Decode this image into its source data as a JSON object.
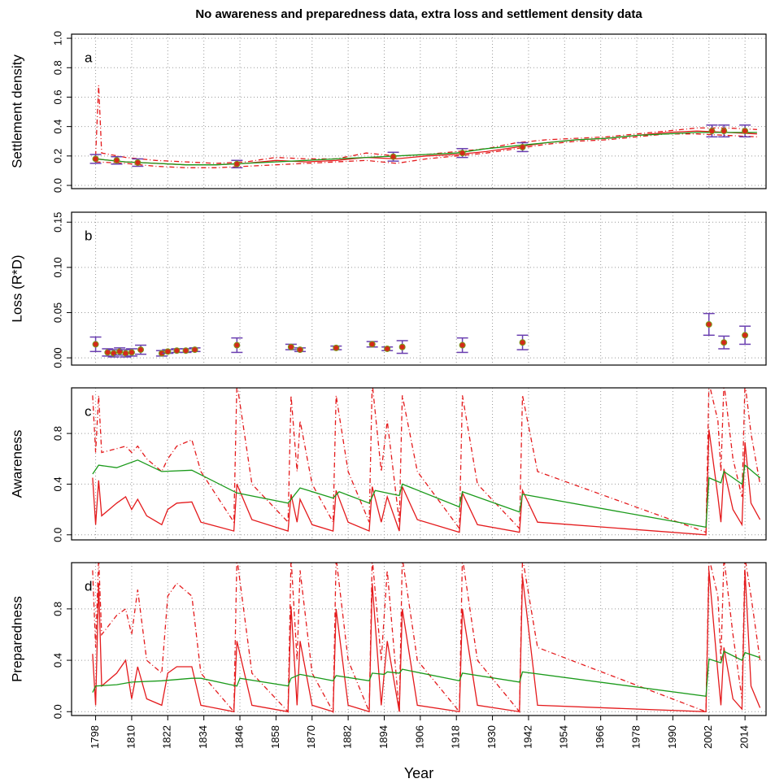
{
  "title": "No awareness and preparedness data, extra loss and settlement density data",
  "x_label": "Year",
  "xlim": [
    1790,
    2021
  ],
  "xticks": [
    1798,
    1810,
    1822,
    1834,
    1846,
    1858,
    1870,
    1882,
    1894,
    1906,
    1918,
    1930,
    1942,
    1954,
    1966,
    1978,
    1990,
    2002,
    2014
  ],
  "chart_data": [
    {
      "type": "line",
      "panel_label": "a",
      "y_label": "Settlement density",
      "grid": true,
      "ylim": [
        -0.022,
        1.028
      ],
      "yticks": [
        {
          "value": 0,
          "label": "0.0"
        },
        0.2,
        0.4,
        0.6,
        0.8,
        {
          "value": 1,
          "label": "1.0"
        }
      ],
      "series": [
        {
          "color": "#e41a1c",
          "dash": true,
          "x": [
            1798,
            1799,
            1800,
            1808,
            1818,
            1828,
            1838,
            1848,
            1858,
            1868,
            1878,
            1888,
            1898,
            1908,
            1918,
            1928,
            1938,
            1948,
            1958,
            1968,
            1978,
            1988,
            1998,
            2008,
            2018
          ],
          "values": [
            0.2,
            0.68,
            0.22,
            0.19,
            0.17,
            0.16,
            0.15,
            0.16,
            0.19,
            0.18,
            0.18,
            0.22,
            0.2,
            0.21,
            0.23,
            0.25,
            0.29,
            0.31,
            0.32,
            0.33,
            0.35,
            0.37,
            0.39,
            0.39,
            0.38
          ]
        },
        {
          "color": "#e41a1c",
          "dash": true,
          "x": [
            1798,
            1808,
            1818,
            1828,
            1838,
            1848,
            1858,
            1868,
            1878,
            1888,
            1898,
            1908,
            1918,
            1928,
            1938,
            1948,
            1958,
            1968,
            1978,
            1988,
            1998,
            2008,
            2018
          ],
          "values": [
            0.16,
            0.15,
            0.13,
            0.12,
            0.12,
            0.13,
            0.14,
            0.15,
            0.16,
            0.17,
            0.15,
            0.18,
            0.2,
            0.22,
            0.25,
            0.28,
            0.3,
            0.31,
            0.33,
            0.35,
            0.35,
            0.34,
            0.33
          ]
        },
        {
          "color": "#e41a1c",
          "dash": false,
          "x": [
            1798,
            1808,
            1818,
            1828,
            1838,
            1848,
            1858,
            1868,
            1878,
            1888,
            1898,
            1908,
            1918,
            1928,
            1938,
            1948,
            1958,
            1968,
            1978,
            1988,
            1998,
            2008,
            2018
          ],
          "values": [
            0.18,
            0.16,
            0.15,
            0.14,
            0.14,
            0.15,
            0.17,
            0.16,
            0.17,
            0.19,
            0.18,
            0.2,
            0.21,
            0.23,
            0.26,
            0.29,
            0.31,
            0.32,
            0.34,
            0.36,
            0.37,
            0.36,
            0.35
          ]
        },
        {
          "color": "#1a9a1a",
          "dash": false,
          "x": [
            1798,
            1808,
            1818,
            1828,
            1838,
            1848,
            1858,
            1868,
            1878,
            1888,
            1898,
            1908,
            1918,
            1928,
            1938,
            1948,
            1958,
            1968,
            1978,
            1988,
            1998,
            2008,
            2018
          ],
          "values": [
            0.18,
            0.16,
            0.15,
            0.14,
            0.14,
            0.15,
            0.16,
            0.17,
            0.18,
            0.19,
            0.2,
            0.21,
            0.22,
            0.25,
            0.27,
            0.29,
            0.31,
            0.32,
            0.34,
            0.35,
            0.36,
            0.36,
            0.36
          ]
        }
      ],
      "points": {
        "color": "#6a3fb0",
        "x": [
          1798,
          1805,
          1812,
          1845,
          1897,
          1920,
          1940,
          2003,
          2007,
          2014
        ],
        "values": [
          0.18,
          0.17,
          0.155,
          0.145,
          0.195,
          0.22,
          0.26,
          0.37,
          0.37,
          0.37
        ],
        "errors": [
          0.03,
          0.025,
          0.025,
          0.025,
          0.03,
          0.03,
          0.03,
          0.04,
          0.04,
          0.04
        ]
      }
    },
    {
      "type": "line",
      "panel_label": "b",
      "y_label": "Loss (R*D)",
      "grid": true,
      "ylim": [
        -0.008,
        0.161
      ],
      "yticks": [
        {
          "value": 0,
          "label": "0.00"
        },
        0.05,
        {
          "value": 0.1,
          "label": "0.10"
        },
        0.15
      ],
      "series": [],
      "points": {
        "color": "#6a3fb0",
        "x": [
          1798,
          1802,
          1804,
          1806,
          1808,
          1810,
          1813,
          1820,
          1822,
          1825,
          1828,
          1831,
          1845,
          1863,
          1866,
          1878,
          1890,
          1895,
          1900,
          1920,
          1940,
          2002,
          2007,
          2014
        ],
        "values": [
          0.015,
          0.006,
          0.005,
          0.007,
          0.005,
          0.006,
          0.009,
          0.005,
          0.007,
          0.008,
          0.008,
          0.009,
          0.014,
          0.012,
          0.009,
          0.011,
          0.015,
          0.01,
          0.012,
          0.014,
          0.017,
          0.037,
          0.017,
          0.025
        ],
        "errors": [
          0.008,
          0.004,
          0.004,
          0.004,
          0.004,
          0.004,
          0.005,
          0.003,
          0.002,
          0.002,
          0.002,
          0.002,
          0.008,
          0.003,
          0.002,
          0.002,
          0.003,
          0.002,
          0.007,
          0.008,
          0.008,
          0.012,
          0.007,
          0.01
        ]
      }
    },
    {
      "type": "line",
      "panel_label": "c",
      "y_label": "Awareness",
      "grid": true,
      "ylim": [
        -0.04,
        1.16
      ],
      "yticks": [
        {
          "value": 0,
          "label": "0.0"
        },
        0.4,
        0.8
      ],
      "series": [
        {
          "color": "#e41a1c",
          "dash": true,
          "x": [
            1797,
            1798,
            1799,
            1800,
            1805,
            1808,
            1810,
            1812,
            1815,
            1820,
            1822,
            1825,
            1830,
            1833,
            1844,
            1845,
            1850,
            1862,
            1863,
            1865,
            1866,
            1870,
            1877,
            1878,
            1882,
            1889,
            1890,
            1893,
            1895,
            1899,
            1900,
            1905,
            1919,
            1920,
            1925,
            1939,
            1940,
            1945,
            2001,
            2002,
            2005,
            2006,
            2007,
            2010,
            2013,
            2014,
            2016,
            2019
          ],
          "values": [
            1.1,
            0.65,
            1.1,
            0.65,
            0.68,
            0.7,
            0.65,
            0.7,
            0.6,
            0.5,
            0.6,
            0.7,
            0.75,
            0.5,
            0.1,
            1.2,
            0.4,
            0.1,
            1.1,
            0.5,
            0.9,
            0.4,
            0.1,
            1.1,
            0.5,
            0.1,
            1.2,
            0.5,
            0.9,
            0.1,
            1.1,
            0.5,
            0.05,
            1.1,
            0.4,
            0.05,
            1.1,
            0.5,
            0.02,
            1.2,
            0.9,
            0.5,
            1.2,
            0.6,
            0.3,
            1.2,
            0.8,
            0.4
          ]
        },
        {
          "color": "#e41a1c",
          "dash": false,
          "x": [
            1797,
            1798,
            1799,
            1800,
            1805,
            1808,
            1810,
            1812,
            1815,
            1820,
            1822,
            1825,
            1830,
            1833,
            1844,
            1845,
            1850,
            1862,
            1863,
            1865,
            1866,
            1870,
            1877,
            1878,
            1882,
            1889,
            1890,
            1893,
            1895,
            1899,
            1900,
            1905,
            1919,
            1920,
            1925,
            1939,
            1940,
            1945,
            2001,
            2002,
            2005,
            2006,
            2007,
            2010,
            2013,
            2014,
            2016,
            2019
          ],
          "values": [
            0.45,
            0.08,
            0.43,
            0.15,
            0.25,
            0.3,
            0.2,
            0.28,
            0.15,
            0.08,
            0.2,
            0.25,
            0.26,
            0.1,
            0.03,
            0.4,
            0.12,
            0.03,
            0.32,
            0.1,
            0.28,
            0.08,
            0.03,
            0.35,
            0.1,
            0.03,
            0.38,
            0.1,
            0.3,
            0.03,
            0.38,
            0.12,
            0.02,
            0.33,
            0.08,
            0.02,
            0.35,
            0.1,
            0.0,
            0.83,
            0.3,
            0.1,
            0.52,
            0.2,
            0.08,
            0.73,
            0.25,
            0.12
          ]
        },
        {
          "color": "#1a9a1a",
          "dash": false,
          "x": [
            1797,
            1799,
            1805,
            1812,
            1820,
            1830,
            1845,
            1862,
            1866,
            1877,
            1879,
            1889,
            1891,
            1899,
            1900,
            1919,
            1920,
            1939,
            1940,
            2001,
            2002,
            2006,
            2007,
            2013,
            2014,
            2019
          ],
          "values": [
            0.48,
            0.55,
            0.53,
            0.59,
            0.5,
            0.51,
            0.33,
            0.25,
            0.37,
            0.29,
            0.34,
            0.25,
            0.35,
            0.31,
            0.4,
            0.22,
            0.34,
            0.18,
            0.32,
            0.06,
            0.45,
            0.41,
            0.5,
            0.4,
            0.55,
            0.45
          ]
        }
      ]
    },
    {
      "type": "line",
      "panel_label": "d",
      "y_label": "Preparedness",
      "grid": true,
      "ylim": [
        -0.03,
        1.16
      ],
      "yticks": [
        {
          "value": 0,
          "label": "0.0"
        },
        0.4,
        0.8
      ],
      "series": [
        {
          "color": "#e41a1c",
          "dash": true,
          "x": [
            1797,
            1798,
            1799,
            1800,
            1805,
            1808,
            1810,
            1812,
            1815,
            1820,
            1822,
            1825,
            1830,
            1833,
            1844,
            1845,
            1850,
            1862,
            1863,
            1865,
            1866,
            1870,
            1877,
            1878,
            1882,
            1889,
            1890,
            1893,
            1895,
            1899,
            1900,
            1905,
            1919,
            1920,
            1925,
            1939,
            1940,
            1945,
            2001,
            2002,
            2005,
            2006,
            2007,
            2010,
            2013,
            2014,
            2016,
            2019
          ],
          "values": [
            1.1,
            0.5,
            1.2,
            0.6,
            0.75,
            0.8,
            0.6,
            0.95,
            0.4,
            0.3,
            0.9,
            1.0,
            0.9,
            0.3,
            0.0,
            1.2,
            0.3,
            0.0,
            1.2,
            0.4,
            1.1,
            0.3,
            0.0,
            1.2,
            0.4,
            0.0,
            1.2,
            0.4,
            1.1,
            0.0,
            1.2,
            0.4,
            0.0,
            1.2,
            0.4,
            0.0,
            1.2,
            0.5,
            0.0,
            1.2,
            0.9,
            0.4,
            1.2,
            0.6,
            0.1,
            1.2,
            0.9,
            0.4
          ]
        },
        {
          "color": "#e41a1c",
          "dash": false,
          "x": [
            1797,
            1798,
            1799,
            1800,
            1805,
            1808,
            1810,
            1812,
            1815,
            1820,
            1822,
            1825,
            1830,
            1833,
            1844,
            1845,
            1850,
            1862,
            1863,
            1865,
            1866,
            1870,
            1877,
            1878,
            1882,
            1889,
            1890,
            1893,
            1895,
            1899,
            1900,
            1905,
            1919,
            1920,
            1925,
            1939,
            1940,
            1945,
            2001,
            2002,
            2005,
            2006,
            2007,
            2010,
            2013,
            2014,
            2016,
            2019
          ],
          "values": [
            0.45,
            0.05,
            1.0,
            0.2,
            0.3,
            0.4,
            0.1,
            0.35,
            0.1,
            0.05,
            0.3,
            0.35,
            0.35,
            0.05,
            0.0,
            0.55,
            0.05,
            0.0,
            0.82,
            0.05,
            0.55,
            0.05,
            0.0,
            0.8,
            0.05,
            0.0,
            1.0,
            0.05,
            0.55,
            0.0,
            0.8,
            0.05,
            0.0,
            0.8,
            0.05,
            0.0,
            1.05,
            0.05,
            0.0,
            1.1,
            0.3,
            0.05,
            0.5,
            0.1,
            0.02,
            1.1,
            0.2,
            0.03
          ]
        },
        {
          "color": "#1a9a1a",
          "dash": false,
          "x": [
            1797,
            1798,
            1805,
            1810,
            1820,
            1830,
            1833,
            1845,
            1846,
            1862,
            1863,
            1866,
            1877,
            1878,
            1889,
            1890,
            1894,
            1895,
            1899,
            1900,
            1919,
            1920,
            1939,
            1940,
            2001,
            2002,
            2006,
            2007,
            2013,
            2014,
            2019
          ],
          "values": [
            0.15,
            0.2,
            0.21,
            0.23,
            0.24,
            0.26,
            0.26,
            0.2,
            0.26,
            0.2,
            0.26,
            0.29,
            0.24,
            0.28,
            0.24,
            0.3,
            0.29,
            0.31,
            0.3,
            0.33,
            0.24,
            0.3,
            0.23,
            0.31,
            0.12,
            0.41,
            0.38,
            0.47,
            0.4,
            0.46,
            0.42
          ]
        }
      ]
    }
  ]
}
